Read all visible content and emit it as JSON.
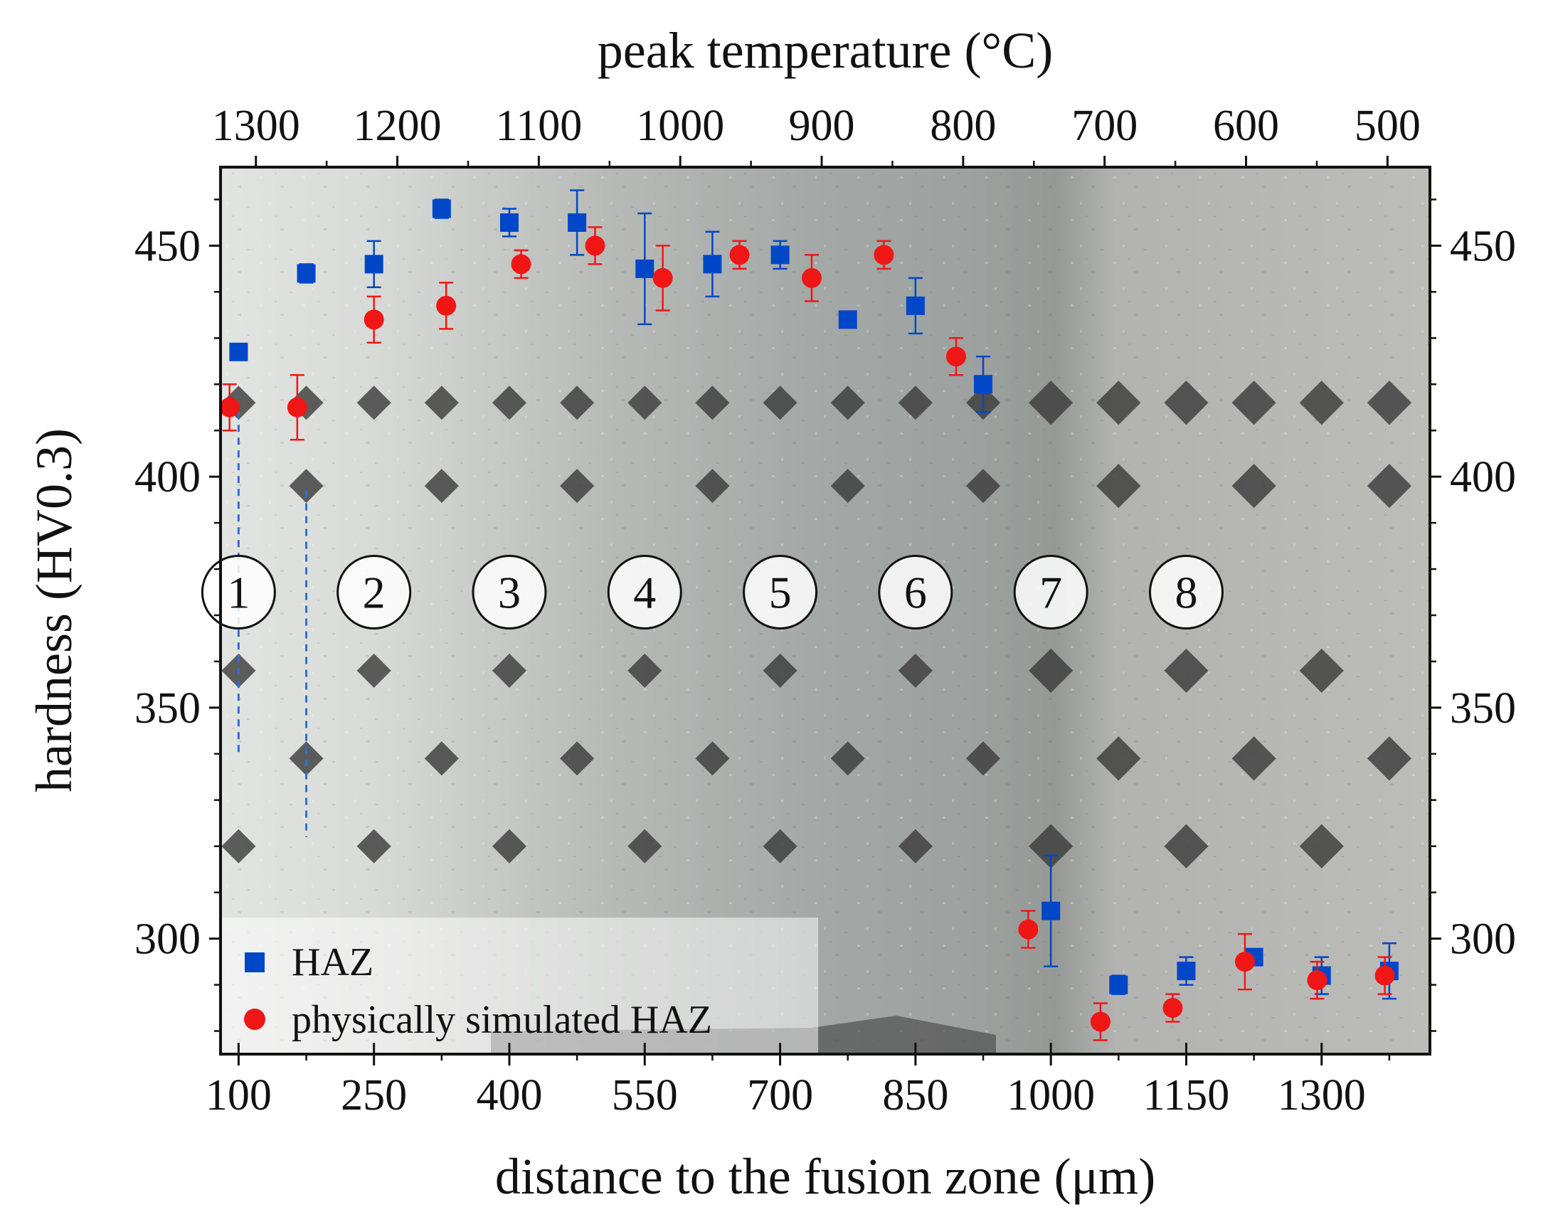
{
  "chart_data": {
    "type": "scatter",
    "title": "",
    "xlabel": "distance to the fusion zone (μm)",
    "ylabel": "hardness (HV0.3)",
    "x2label": "peak temperature (°C)",
    "xlim": [
      80,
      1420
    ],
    "ylim": [
      275,
      467
    ],
    "x2lim": [
      1300,
      500
    ],
    "x_ticks": [
      100,
      250,
      400,
      550,
      700,
      850,
      1000,
      1150,
      1300
    ],
    "x_tick_labels": [
      "100",
      "250",
      "400",
      "550",
      "700",
      "850",
      "1000",
      "1150",
      "1300"
    ],
    "x2_ticks": [
      1300,
      1200,
      1100,
      1000,
      900,
      800,
      700,
      600,
      500
    ],
    "x2_tick_labels": [
      "1300",
      "1200",
      "1100",
      "1000",
      "900",
      "800",
      "700",
      "600",
      "500"
    ],
    "y_ticks": [
      300,
      350,
      400,
      450
    ],
    "y_tick_labels": [
      "300",
      "350",
      "400",
      "450"
    ],
    "grid": false,
    "legend_position": "bottom-left",
    "background": "etched HAZ micrograph with Vickers indentation array",
    "series": [
      {
        "name": "HAZ",
        "marker": "square",
        "color": "#0047c8",
        "points": [
          {
            "x": 100,
            "y": 427,
            "err": 0
          },
          {
            "x": 175,
            "y": 444,
            "err": 2
          },
          {
            "x": 250,
            "y": 446,
            "err": 5
          },
          {
            "x": 325,
            "y": 458,
            "err": 2
          },
          {
            "x": 400,
            "y": 455,
            "err": 3
          },
          {
            "x": 475,
            "y": 455,
            "err": 7
          },
          {
            "x": 550,
            "y": 445,
            "err": 12
          },
          {
            "x": 625,
            "y": 446,
            "err": 7
          },
          {
            "x": 700,
            "y": 448,
            "err": 3
          },
          {
            "x": 775,
            "y": 434,
            "err": 0
          },
          {
            "x": 850,
            "y": 437,
            "err": 6
          },
          {
            "x": 925,
            "y": 420,
            "err": 6
          },
          {
            "x": 1000,
            "y": 306,
            "err": 12
          },
          {
            "x": 1075,
            "y": 290,
            "err": 2
          },
          {
            "x": 1150,
            "y": 293,
            "err": 3
          },
          {
            "x": 1225,
            "y": 296,
            "err": 0
          },
          {
            "x": 1300,
            "y": 292,
            "err": 4
          },
          {
            "x": 1375,
            "y": 293,
            "err": 6
          }
        ]
      },
      {
        "name": "physically simulated HAZ",
        "marker": "circle",
        "color": "#f01616",
        "points": [
          {
            "x": 90,
            "y": 415,
            "err": 5
          },
          {
            "x": 165,
            "y": 415,
            "err": 7
          },
          {
            "x": 250,
            "y": 434,
            "err": 5
          },
          {
            "x": 330,
            "y": 437,
            "err": 5
          },
          {
            "x": 413,
            "y": 446,
            "err": 3
          },
          {
            "x": 495,
            "y": 450,
            "err": 4
          },
          {
            "x": 570,
            "y": 443,
            "err": 7
          },
          {
            "x": 655,
            "y": 448,
            "err": 3
          },
          {
            "x": 735,
            "y": 443,
            "err": 5
          },
          {
            "x": 815,
            "y": 448,
            "err": 3
          },
          {
            "x": 895,
            "y": 426,
            "err": 4
          },
          {
            "x": 975,
            "y": 302,
            "err": 4
          },
          {
            "x": 1055,
            "y": 282,
            "err": 4
          },
          {
            "x": 1135,
            "y": 285,
            "err": 3
          },
          {
            "x": 1215,
            "y": 295,
            "err": 6
          },
          {
            "x": 1295,
            "y": 291,
            "err": 4
          },
          {
            "x": 1370,
            "y": 292,
            "err": 4
          }
        ]
      }
    ],
    "zones": [
      {
        "label": "1",
        "x": 100,
        "y": 375
      },
      {
        "label": "2",
        "x": 250,
        "y": 375
      },
      {
        "label": "3",
        "x": 400,
        "y": 375
      },
      {
        "label": "4",
        "x": 550,
        "y": 375
      },
      {
        "label": "5",
        "x": 700,
        "y": 375
      },
      {
        "label": "6",
        "x": 850,
        "y": 375
      },
      {
        "label": "7",
        "x": 1000,
        "y": 375
      },
      {
        "label": "8",
        "x": 1150,
        "y": 375
      }
    ],
    "reference_lines": [
      {
        "x": 100,
        "y_from": 414,
        "y_to": 340
      },
      {
        "x": 175,
        "y_from": 397,
        "y_to": 322
      }
    ]
  }
}
